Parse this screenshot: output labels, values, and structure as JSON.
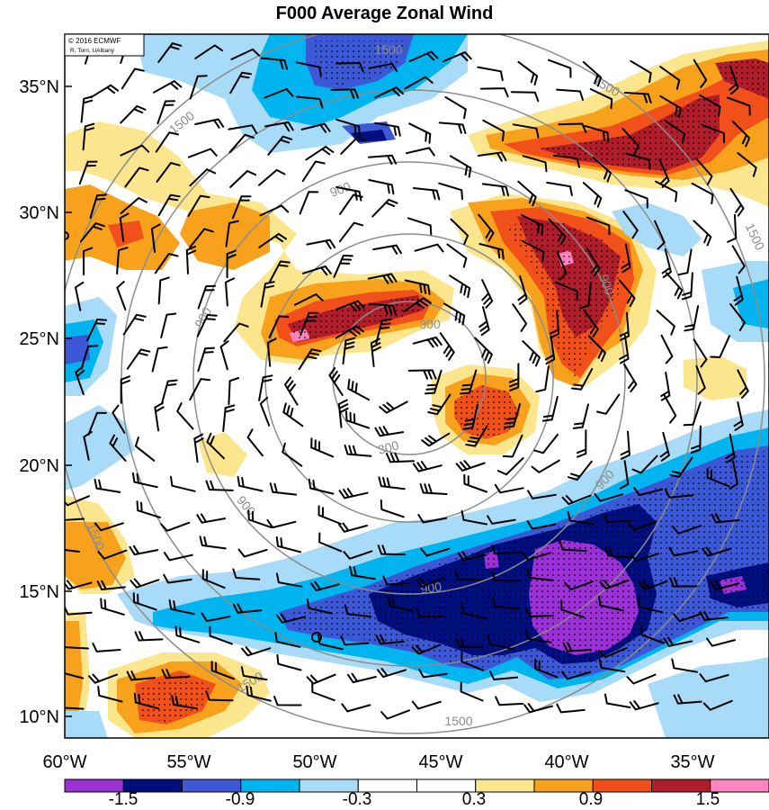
{
  "title": "F000 Average Zonal Wind",
  "credit": [
    "© 2016 ECMWF",
    "R. Torn, UAlbany"
  ],
  "lat_labels": [
    "35°N",
    "30°N",
    "25°N",
    "20°N",
    "15°N",
    "10°N"
  ],
  "lon_labels": [
    "60°W",
    "55°W",
    "50°W",
    "45°W",
    "40°W",
    "35°W"
  ],
  "colorbar": {
    "colors": [
      "#9b30d6",
      "#000f80",
      "#3c58d6",
      "#00b4f0",
      "#a8dbf7",
      "#ffffff",
      "#ffffff",
      "#fce68d",
      "#f7a11d",
      "#f2501a",
      "#b01d2a",
      "#ff85c2"
    ],
    "labels": [
      "-1.5",
      "-0.9",
      "-0.3",
      "0.3",
      "0.9",
      "1.5"
    ]
  },
  "contour_labels": [
    "1500",
    "1500",
    "1500",
    "1500",
    "1500",
    "1500",
    "1500",
    "900",
    "900",
    "900",
    "900",
    "900",
    "900",
    "300",
    "300"
  ],
  "field": {
    "fill_colors": {
      "purple": "#9b30d6",
      "navy": "#000f80",
      "blue": "#3c58d6",
      "cyan": "#00b4f0",
      "lightblue": "#a8dbf7",
      "yellow": "#fce68d",
      "orange": "#f7a11d",
      "redorange": "#f2501a",
      "darkred": "#b01d2a",
      "pink": "#ff85c2"
    }
  }
}
